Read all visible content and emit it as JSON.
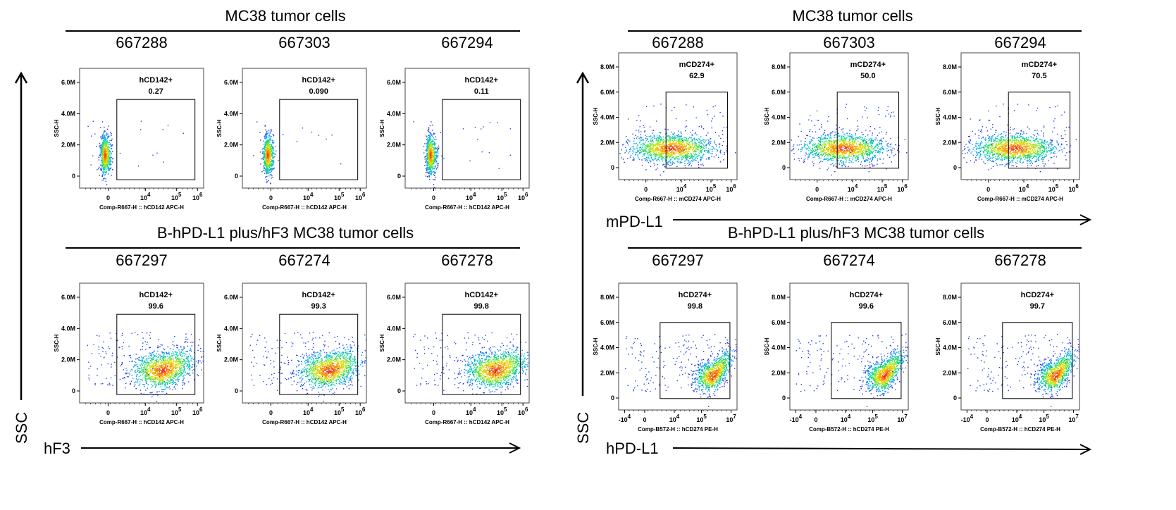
{
  "panels": [
    {
      "y_axis_label": "SSC",
      "x_axis_label": "hF3",
      "rows": [
        {
          "title": "MC38 tumor cells",
          "plots": [
            {
              "sample": "667288",
              "gate_label": "hCD142+",
              "percent": "0.27",
              "xaxis": "Comp-R667-H :: hCD142 APC-H",
              "positive": false
            },
            {
              "sample": "667303",
              "gate_label": "hCD142+",
              "percent": "0.090",
              "xaxis": "Comp-R667-H :: hCD142 APC-H",
              "positive": false
            },
            {
              "sample": "667294",
              "gate_label": "hCD142+",
              "percent": "0.11",
              "xaxis": "Comp-R667-H :: hCD142 APC-H",
              "positive": false
            }
          ],
          "yticks": [
            "6.0M",
            "4.0M",
            "2.0M",
            "0"
          ],
          "xticks": [
            "0",
            "10^4",
            "10^5",
            "10^6"
          ]
        },
        {
          "title": "B-hPD-L1 plus/hF3 MC38 tumor cells",
          "plots": [
            {
              "sample": "667297",
              "gate_label": "hCD142+",
              "percent": "99.6",
              "xaxis": "Comp-R667-H :: hCD142 APC-H",
              "positive": true
            },
            {
              "sample": "667274",
              "gate_label": "hCD142+",
              "percent": "99.3",
              "xaxis": "Comp-R667-H :: hCD142 APC-H",
              "positive": true
            },
            {
              "sample": "667278",
              "gate_label": "hCD142+",
              "percent": "99.8",
              "xaxis": "Comp-R667-H :: hCD142 APC-H",
              "positive": true
            }
          ],
          "yticks": [
            "6.0M",
            "4.0M",
            "2.0M",
            "0"
          ],
          "xticks": [
            "0",
            "10^4",
            "10^5",
            "10^6"
          ]
        }
      ]
    },
    {
      "y_axis_label": "SSC",
      "x_axis_label": "hPD-L1",
      "mid_axis_label": "mPD-L1",
      "rows": [
        {
          "title": "MC38 tumor cells",
          "plots": [
            {
              "sample": "667288",
              "gate_label": "mCD274+",
              "percent": "62.9",
              "xaxis": "Comp-R667-H :: mCD274 APC-H",
              "positive": true
            },
            {
              "sample": "667303",
              "gate_label": "mCD274+",
              "percent": "50.0",
              "xaxis": "Comp-R667-H :: mCD274 APC-H",
              "positive": true
            },
            {
              "sample": "667294",
              "gate_label": "mCD274+",
              "percent": "70.5",
              "xaxis": "Comp-R667-H :: mCD274 APC-H",
              "positive": true
            }
          ],
          "yticks": [
            "8.0M",
            "6.0M",
            "4.0M",
            "2.0M",
            "0"
          ],
          "xticks": [
            "0",
            "10^4",
            "10^5",
            "10^6"
          ]
        },
        {
          "title": "B-hPD-L1 plus/hF3 MC38 tumor cells",
          "plots": [
            {
              "sample": "667297",
              "gate_label": "hCD274+",
              "percent": "99.8",
              "xaxis": "Comp-B572-H :: hCD274 PE-H",
              "positive": true
            },
            {
              "sample": "667274",
              "gate_label": "hCD274+",
              "percent": "99.6",
              "xaxis": "Comp-B572-H :: hCD274 PE-H",
              "positive": true
            },
            {
              "sample": "667278",
              "gate_label": "hCD274+",
              "percent": "99.7",
              "xaxis": "Comp-B572-H :: hCD274 PE-H",
              "positive": true
            }
          ],
          "yticks": [
            "8.0M",
            "6.0M",
            "4.0M",
            "2.0M",
            "0"
          ],
          "xticks": [
            "-10^4",
            "0",
            "10^4",
            "10^5",
            "10^7"
          ]
        }
      ]
    }
  ],
  "y_tick_axis_title": "SSC-H"
}
